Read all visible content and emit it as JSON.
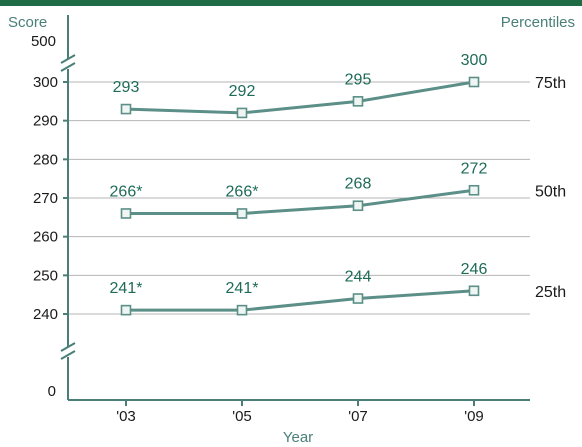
{
  "colors": {
    "top_bar": "#1f6b45",
    "axis": "#4a7f79",
    "series_line": "#5b8f88",
    "marker_stroke": "#5b8f88",
    "marker_fill": "#eef5f3",
    "grid": "#b5b5b5",
    "data_label": "#1e6b57",
    "tick_text": "#1a1a1a",
    "axis_title": "#4a7f79"
  },
  "chart_data": {
    "type": "line",
    "title": "",
    "ylabel": "Score",
    "xlabel": "Year",
    "right_label": "Percentiles",
    "categories": [
      "'03",
      "'05",
      "'07",
      "'09"
    ],
    "y_axis": {
      "ticks_main": [
        240,
        250,
        260,
        270,
        280,
        290,
        300
      ],
      "top_break_tick": 500,
      "bottom_break_tick": 0,
      "main_range": [
        235,
        305
      ],
      "has_breaks": true
    },
    "grid": true,
    "series": [
      {
        "name": "75th",
        "values": [
          293,
          292,
          295,
          300
        ],
        "labels": [
          "293",
          "292",
          "295",
          "300"
        ]
      },
      {
        "name": "50th",
        "values": [
          266,
          266,
          268,
          272
        ],
        "labels": [
          "266*",
          "266*",
          "268",
          "272"
        ]
      },
      {
        "name": "25th",
        "values": [
          241,
          241,
          244,
          246
        ],
        "labels": [
          "241*",
          "241*",
          "244",
          "246"
        ]
      }
    ]
  }
}
